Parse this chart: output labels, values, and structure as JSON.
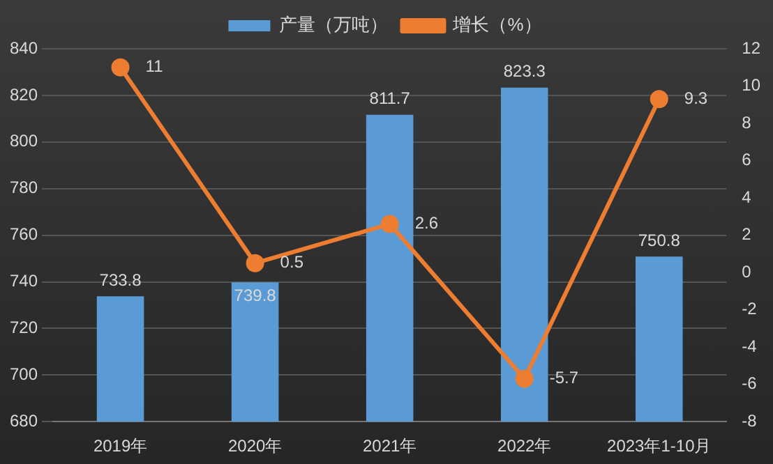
{
  "chart_data": {
    "type": "bar",
    "categories": [
      "2019年",
      "2020年",
      "2021年",
      "2022年",
      "2023年1-10月"
    ],
    "series": [
      {
        "name": "产量（万吨）",
        "color": "#5b9bd5",
        "values": [
          733.8,
          739.8,
          811.7,
          823.3,
          750.8
        ]
      },
      {
        "name": "增长（%）",
        "type": "line",
        "axis": "y2",
        "color": "#ed7d31",
        "values": [
          11,
          0.5,
          2.6,
          -5.7,
          9.3
        ]
      }
    ],
    "ylim": [
      680,
      840
    ],
    "yticks": [
      680,
      700,
      720,
      740,
      760,
      780,
      800,
      820,
      840
    ],
    "y2lim": [
      -8,
      12
    ],
    "y2ticks": [
      -8,
      -6,
      -4,
      -2,
      0,
      2,
      4,
      6,
      8,
      10,
      12
    ],
    "grid": "y",
    "legend": "top",
    "marker": "circle",
    "line_style": "solid",
    "data_labels": true
  }
}
